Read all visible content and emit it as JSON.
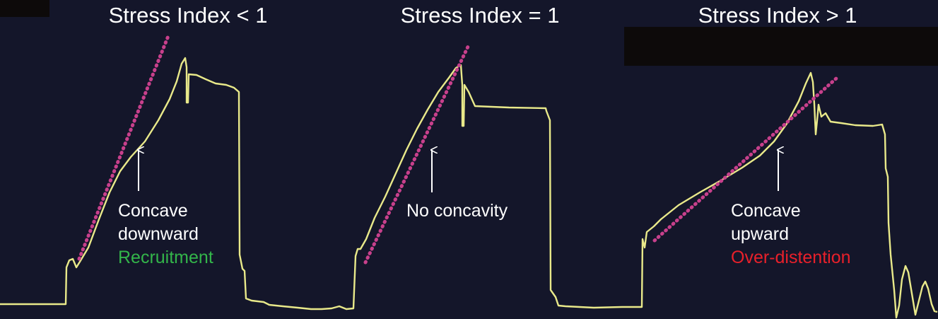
{
  "panels": [
    {
      "title": "Stress Index < 1",
      "caption_lines": [
        "Concave",
        "downward"
      ],
      "interpretation": "Recruitment",
      "interpretation_color": "#33b54a"
    },
    {
      "title": "Stress Index = 1",
      "caption_lines": [
        "No concavity"
      ],
      "interpretation": "",
      "interpretation_color": ""
    },
    {
      "title": "Stress Index > 1",
      "caption_lines": [
        "Concave",
        "upward"
      ],
      "interpretation": "Over-distention",
      "interpretation_color": "#e8202a"
    }
  ],
  "colors": {
    "background": "#14162a",
    "waveform": "#e9e98a",
    "reference_line": "#c8408c",
    "arrow": "#ffffff",
    "text": "#ffffff"
  }
}
